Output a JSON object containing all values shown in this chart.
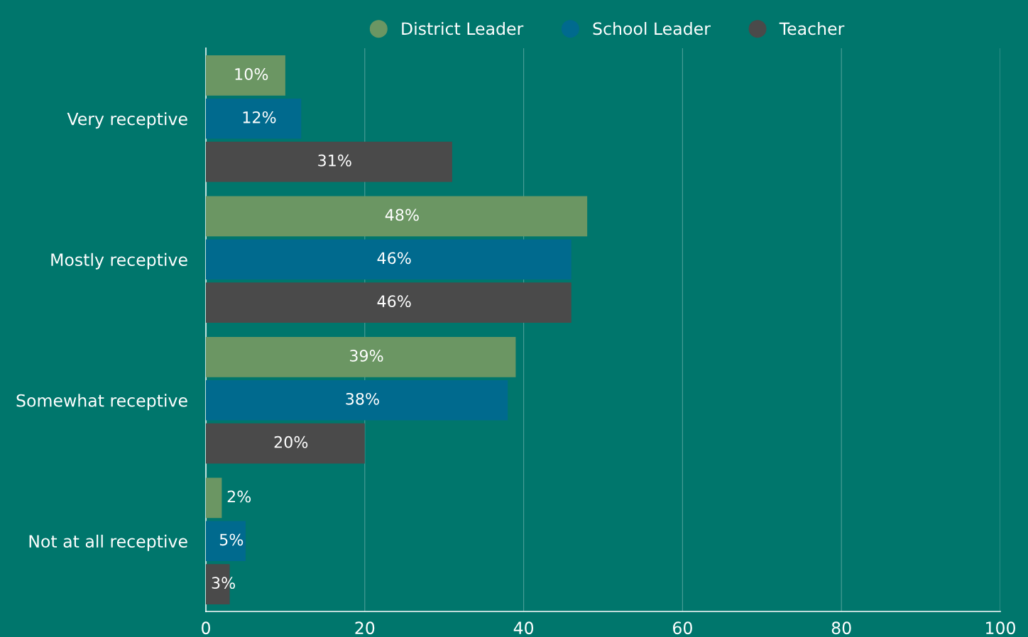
{
  "chart_data": {
    "type": "bar",
    "orientation": "horizontal",
    "categories": [
      "Very receptive",
      "Mostly receptive",
      "Somewhat receptive",
      "Not at all receptive"
    ],
    "series": [
      {
        "name": "District Leader",
        "color": "#6b9663",
        "values": [
          10,
          48,
          39,
          2
        ],
        "value_labels": [
          "10%",
          "48%",
          "39%",
          "2%"
        ]
      },
      {
        "name": "School Leader",
        "color": "#006a8e",
        "values": [
          12,
          46,
          38,
          5
        ],
        "value_labels": [
          "12%",
          "46%",
          "38%",
          "5%"
        ]
      },
      {
        "name": "Teacher",
        "color": "#4a4a4a",
        "values": [
          31,
          46,
          20,
          3
        ],
        "value_labels": [
          "31%",
          "46%",
          "20%",
          "3%"
        ]
      }
    ],
    "xlim": [
      0,
      100
    ],
    "xticks": [
      0,
      20,
      40,
      60,
      80,
      100
    ],
    "grid": "x",
    "legend": "top"
  }
}
